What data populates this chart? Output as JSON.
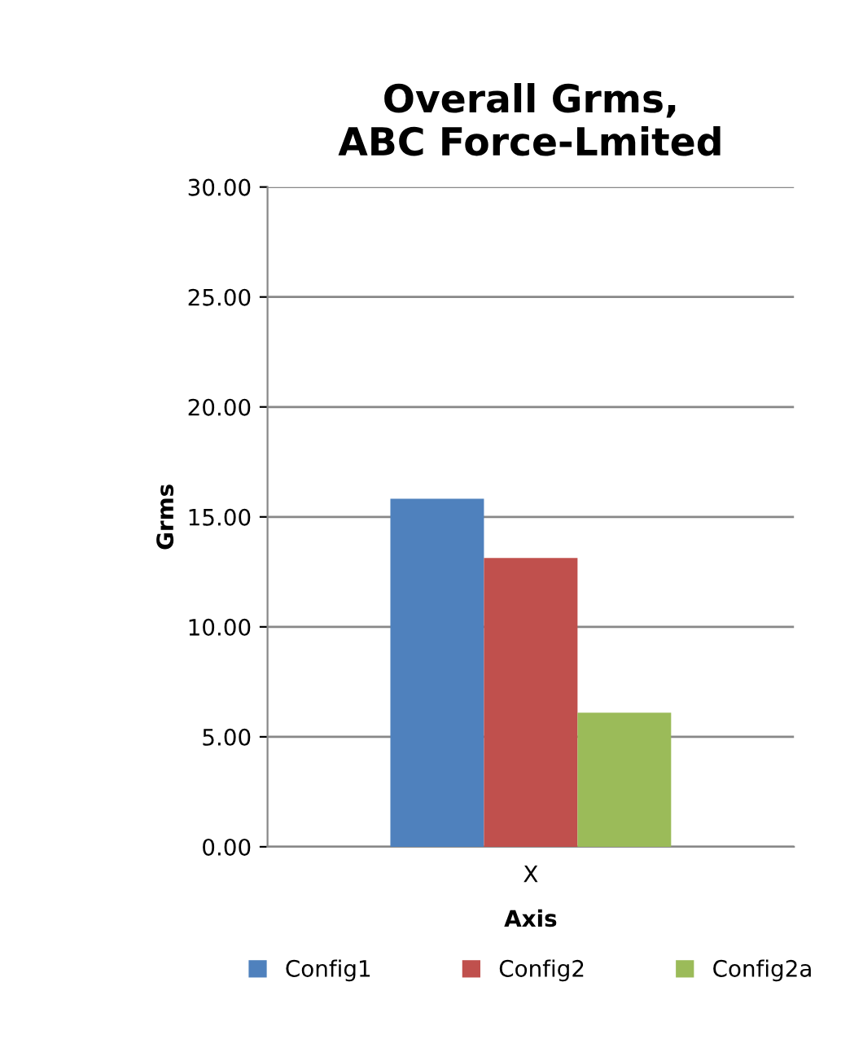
{
  "chart_data": {
    "type": "bar",
    "title": "Overall Grms,\nABC Force-Lmited",
    "xlabel": "Axis",
    "ylabel": "Grms",
    "categories": [
      "X"
    ],
    "series": [
      {
        "name": "Config1",
        "color": "#4f81bd",
        "values": [
          15.83
        ]
      },
      {
        "name": "Config2",
        "color": "#c0504d",
        "values": [
          13.13
        ]
      },
      {
        "name": "Config2a",
        "color": "#9bbb59",
        "values": [
          6.1
        ]
      }
    ],
    "ylim": [
      0,
      30
    ],
    "yticks": [
      {
        "value": 0,
        "label": "0.00"
      },
      {
        "value": 5,
        "label": "5.00"
      },
      {
        "value": 10,
        "label": "10.00"
      },
      {
        "value": 15,
        "label": "15.00"
      },
      {
        "value": 20,
        "label": "20.00"
      },
      {
        "value": 25,
        "label": "25.00"
      },
      {
        "value": 30,
        "label": "30.00"
      }
    ],
    "grid": "y",
    "legend": "bottom"
  }
}
